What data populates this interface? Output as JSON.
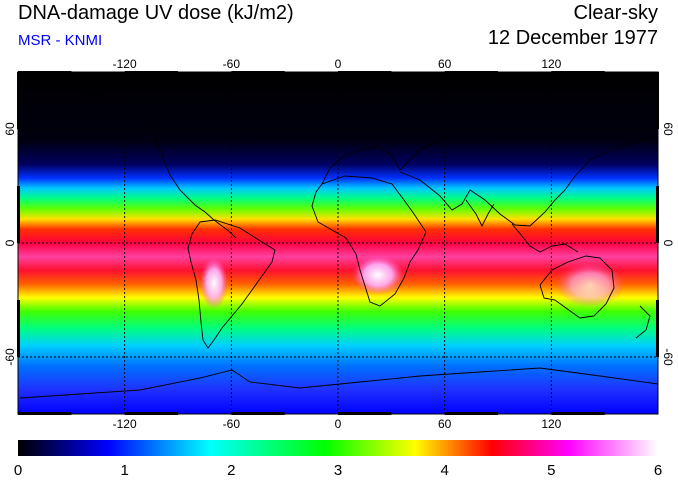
{
  "header": {
    "title": "DNA-damage UV dose (kJ/m2)",
    "source": "MSR - KNMI",
    "sky_condition": "Clear-sky",
    "date": "12 December 1977"
  },
  "map": {
    "projection": "equirectangular",
    "lon_ticks": [
      "-120",
      "-60",
      "0",
      "60",
      "120"
    ],
    "lat_ticks": [
      "60",
      "0",
      "-60"
    ],
    "lon_values": [
      -120,
      -60,
      0,
      60,
      120
    ],
    "lat_values": [
      60,
      0,
      -60
    ],
    "lon_range": [
      -180,
      180
    ],
    "lat_range": [
      -90,
      90
    ],
    "gridlines": "dotted"
  },
  "colorbar": {
    "labels": [
      "0",
      "1",
      "2",
      "3",
      "4",
      "5",
      "6"
    ],
    "range": [
      0,
      6
    ],
    "colors": [
      "#000000",
      "#0000ff",
      "#00ffff",
      "#00ff00",
      "#ffff00",
      "#ff0000",
      "#ff00ff",
      "#ffffff"
    ]
  }
}
